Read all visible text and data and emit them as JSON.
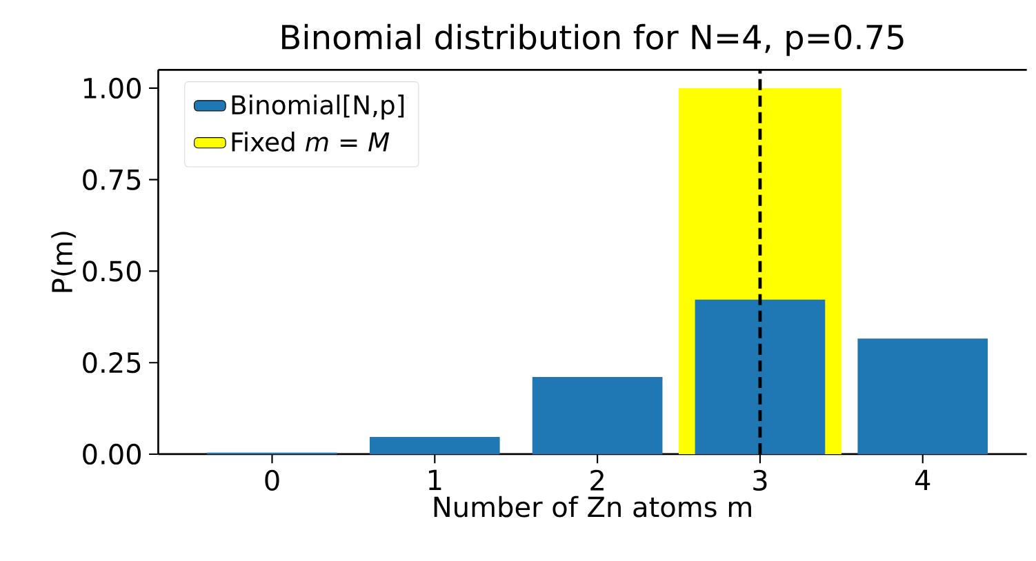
{
  "chart_data": {
    "type": "bar",
    "title": "Binomial distribution for N=4, p=0.75",
    "xlabel": "Number of Zn atoms m",
    "ylabel": "P(m)",
    "x": [
      0,
      1,
      2,
      3,
      4
    ],
    "series": [
      {
        "name": "Binomial[N,p]",
        "color": "#1f77b4",
        "values": [
          0.004,
          0.047,
          0.211,
          0.422,
          0.316
        ]
      },
      {
        "name": "Fixed *m* = *M*",
        "color": "#ffff00",
        "x": [
          3
        ],
        "values": [
          1.0
        ]
      }
    ],
    "xlim": [
      -0.7,
      4.64
    ],
    "xticks": [
      0,
      1,
      2,
      3,
      4
    ],
    "ylim": [
      0,
      1.05
    ],
    "yticks": [
      {
        "value": 0,
        "label": "0.00"
      },
      {
        "value": 0.25,
        "label": "0.25"
      },
      {
        "value": 0.5,
        "label": "0.50"
      },
      {
        "value": 0.75,
        "label": "0.75"
      },
      {
        "value": 1,
        "label": "1.00"
      }
    ],
    "ref_lines": [
      {
        "axis": "x",
        "value": 3,
        "color": "#000000",
        "line_style": "dashed"
      }
    ],
    "legend": "top left",
    "grid": false
  }
}
